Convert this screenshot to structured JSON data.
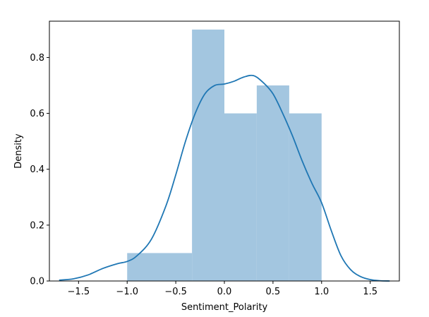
{
  "chart_data": {
    "type": "bar",
    "title": "",
    "xlabel": "Sentiment_Polarity",
    "ylabel": "Density",
    "xlim": [
      -1.8,
      1.8
    ],
    "ylim": [
      0,
      0.93
    ],
    "grid": false,
    "x_ticks": [
      -1.5,
      -1.0,
      -0.5,
      0.0,
      0.5,
      1.0,
      1.5
    ],
    "x_tick_labels": [
      "−1.5",
      "−1.0",
      "−0.5",
      "0.0",
      "0.5",
      "1.0",
      "1.5"
    ],
    "y_ticks": [
      0.0,
      0.2,
      0.4,
      0.6,
      0.8
    ],
    "y_tick_labels": [
      "0.0",
      "0.2",
      "0.4",
      "0.6",
      "0.8"
    ],
    "histogram": {
      "bins": [
        {
          "x0": -1.0,
          "x1": -0.333,
          "density": 0.1
        },
        {
          "x0": -0.333,
          "x1": 0.0,
          "density": 0.9
        },
        {
          "x0": 0.0,
          "x1": 0.333,
          "density": 0.6
        },
        {
          "x0": 0.333,
          "x1": 0.667,
          "density": 0.7
        },
        {
          "x0": 0.667,
          "x1": 1.0,
          "density": 0.6
        }
      ],
      "color": "#a3c6e0"
    },
    "kde": {
      "color": "#1f77b4",
      "x": [
        -1.7,
        -1.55,
        -1.4,
        -1.25,
        -1.1,
        -1.0,
        -0.9,
        -0.75,
        -0.6,
        -0.5,
        -0.4,
        -0.3,
        -0.2,
        -0.1,
        0.0,
        0.1,
        0.2,
        0.3,
        0.4,
        0.5,
        0.6,
        0.7,
        0.8,
        0.9,
        1.0,
        1.1,
        1.2,
        1.3,
        1.4,
        1.5,
        1.6,
        1.7
      ],
      "y": [
        0.003,
        0.008,
        0.022,
        0.045,
        0.062,
        0.07,
        0.09,
        0.15,
        0.27,
        0.38,
        0.5,
        0.6,
        0.67,
        0.7,
        0.705,
        0.715,
        0.73,
        0.735,
        0.71,
        0.67,
        0.6,
        0.52,
        0.43,
        0.35,
        0.28,
        0.18,
        0.09,
        0.04,
        0.016,
        0.005,
        0.001,
        0.0
      ]
    }
  }
}
